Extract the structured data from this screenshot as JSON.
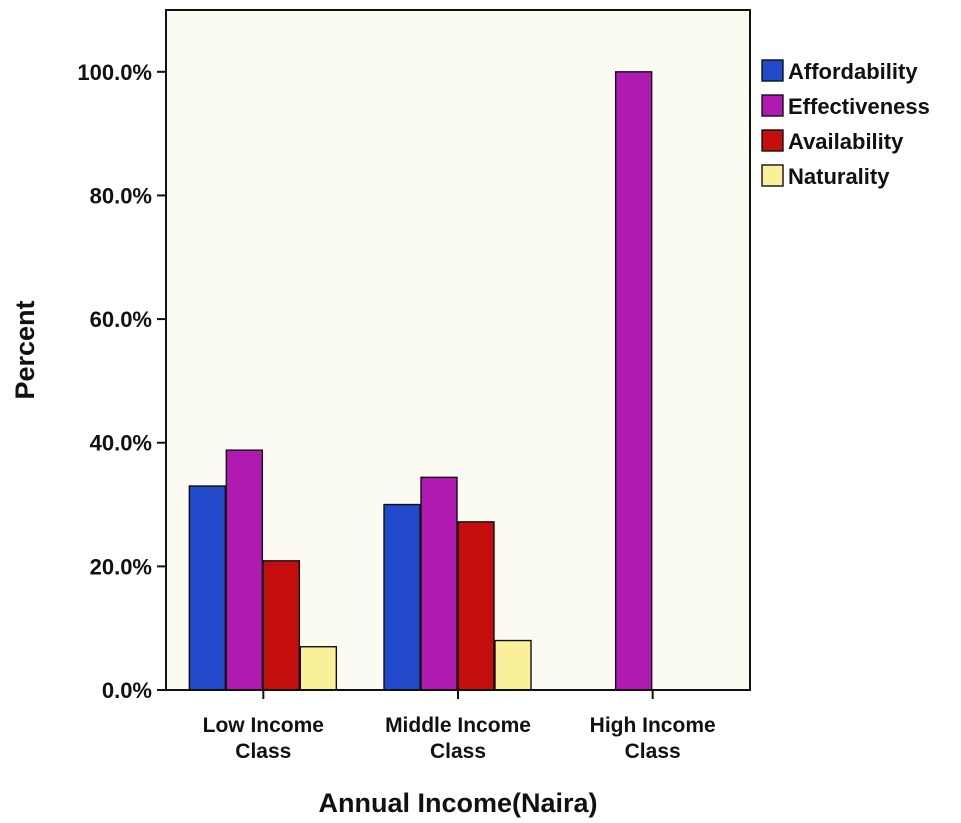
{
  "chart_data": {
    "type": "bar",
    "title": "",
    "xlabel": "Annual Income(Naira)",
    "ylabel": "Percent",
    "categories": [
      [
        "Low Income",
        "Class"
      ],
      [
        "Middle Income",
        "Class"
      ],
      [
        "High Income",
        "Class"
      ]
    ],
    "series": [
      {
        "name": "Affordability",
        "color": "#2149c9",
        "values": [
          33.0,
          30.0,
          0.0
        ]
      },
      {
        "name": "Effectiveness",
        "color": "#b01ab0",
        "values": [
          38.8,
          34.4,
          100.0
        ]
      },
      {
        "name": "Availability",
        "color": "#c40d0d",
        "values": [
          20.9,
          27.2,
          0.0
        ]
      },
      {
        "name": "Naturality",
        "color": "#faf09a",
        "values": [
          7.0,
          8.0,
          0.0
        ]
      }
    ],
    "ylim": [
      0,
      110
    ],
    "yticks": [
      0,
      20,
      40,
      60,
      80,
      100
    ],
    "ytick_labels": [
      "0.0%",
      "20.0%",
      "40.0%",
      "60.0%",
      "80.0%",
      "100.0%"
    ],
    "grid": false,
    "legend_position": "top-right",
    "background_color": "#fbfbf1"
  }
}
